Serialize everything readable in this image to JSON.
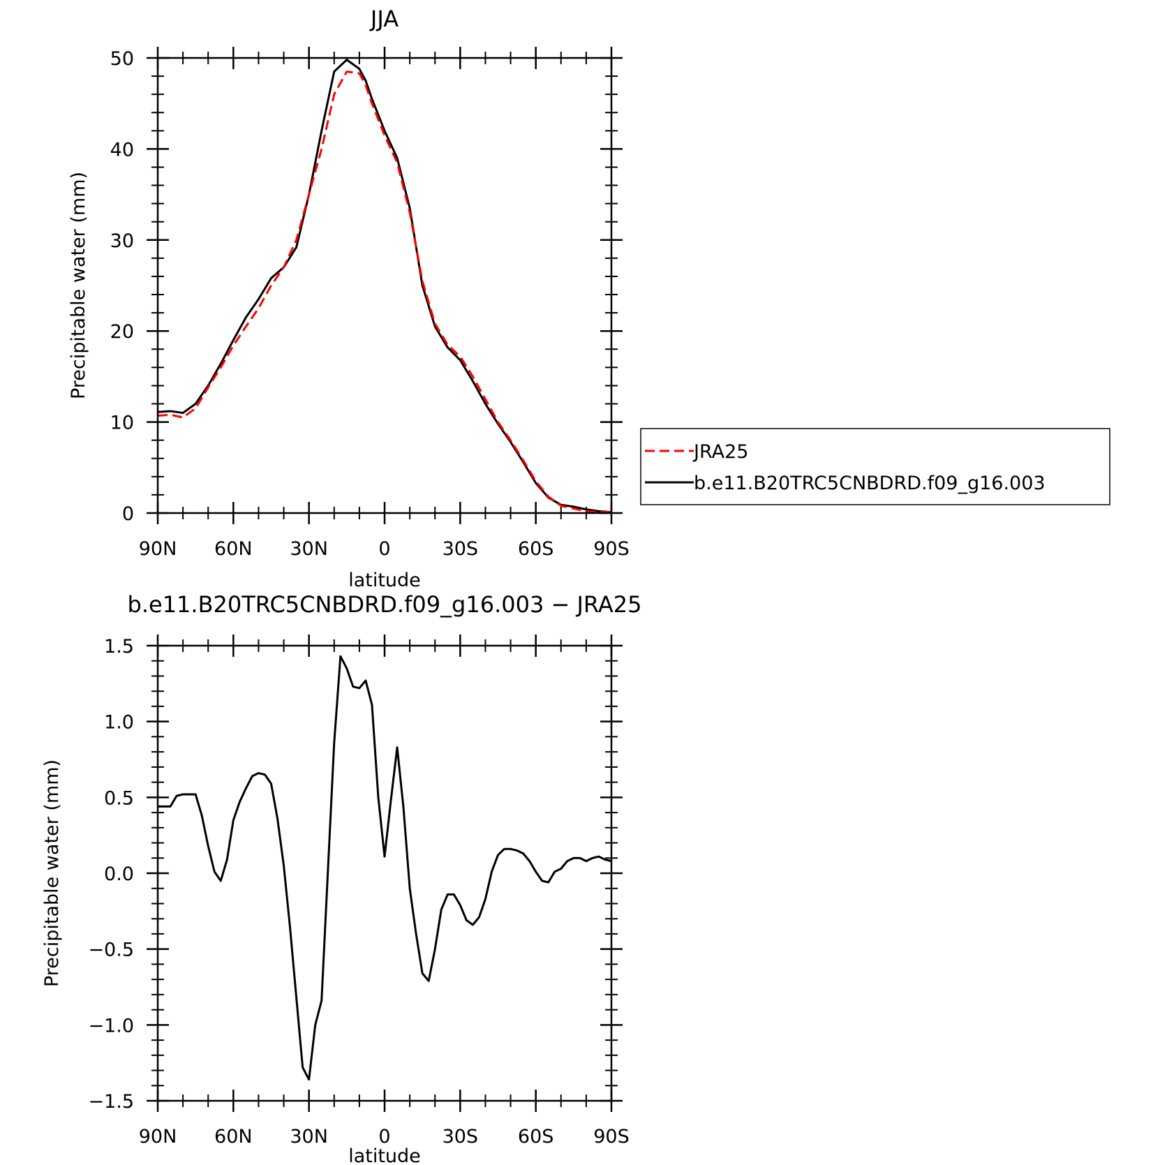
{
  "chart_data": [
    {
      "type": "line",
      "title": "JJA",
      "xlabel": "latitude",
      "ylabel": "Precipitable water (mm)",
      "xlim": [
        90,
        -90
      ],
      "ylim": [
        0,
        50
      ],
      "xticks": [
        90,
        60,
        30,
        0,
        -30,
        -60,
        -90
      ],
      "xtick_labels": [
        "90N",
        "60N",
        "30N",
        "0",
        "30S",
        "60S",
        "90S"
      ],
      "yticks": [
        0,
        10,
        20,
        30,
        40,
        50
      ],
      "ytick_labels": [
        "0",
        "10",
        "20",
        "30",
        "40",
        "50"
      ],
      "legend_position": "right",
      "series": [
        {
          "name": "JRA25",
          "color": "#ff0000",
          "dash": "dashed",
          "x": [
            90,
            85,
            80,
            75,
            70,
            65,
            60,
            55,
            50,
            45,
            40,
            35,
            30,
            25,
            20,
            15,
            10,
            7.5,
            5,
            0,
            -5,
            -10,
            -15,
            -20,
            -25,
            -30,
            -35,
            -40,
            -45,
            -50,
            -55,
            -60,
            -65,
            -70,
            -75,
            -80,
            -85,
            -90
          ],
          "y": [
            10.7,
            10.8,
            10.5,
            11.5,
            13.8,
            16.0,
            18.4,
            20.5,
            22.5,
            25.0,
            27.0,
            30.0,
            35.0,
            40.0,
            46.0,
            48.5,
            48.3,
            47.0,
            45.0,
            41.5,
            38.5,
            33.0,
            25.5,
            20.8,
            18.5,
            17.2,
            15.0,
            12.5,
            10.0,
            8.0,
            5.8,
            3.5,
            1.8,
            0.8,
            0.5,
            0.2,
            0.1,
            0.1
          ]
        },
        {
          "name": "b.e11.B20TRC5CNBDRD.f09_g16.003",
          "color": "#000000",
          "dash": "solid",
          "x": [
            90,
            85,
            80,
            75,
            70,
            65,
            60,
            55,
            50,
            45,
            40,
            35,
            30,
            25,
            20,
            15,
            10,
            7.5,
            5,
            0,
            -5,
            -10,
            -15,
            -20,
            -25,
            -30,
            -35,
            -40,
            -45,
            -50,
            -55,
            -60,
            -65,
            -70,
            -75,
            -80,
            -85,
            -90
          ],
          "y": [
            11.1,
            11.2,
            11.0,
            12.0,
            14.0,
            16.4,
            19.0,
            21.5,
            23.5,
            25.8,
            27.0,
            29.2,
            35.0,
            42.0,
            48.5,
            49.8,
            48.8,
            47.5,
            45.5,
            42.0,
            39.0,
            33.5,
            25.0,
            20.5,
            18.2,
            16.8,
            14.5,
            12.0,
            9.8,
            7.8,
            5.6,
            3.3,
            1.7,
            0.9,
            0.7,
            0.4,
            0.2,
            0.1
          ]
        }
      ]
    },
    {
      "type": "line",
      "title": "b.e11.B20TRC5CNBDRD.f09_g16.003 − JRA25",
      "xlabel": "latitude",
      "ylabel": "Precipitable water (mm)",
      "xlim": [
        90,
        -90
      ],
      "ylim": [
        -1.5,
        1.5
      ],
      "xticks": [
        90,
        60,
        30,
        0,
        -30,
        -60,
        -90
      ],
      "xtick_labels": [
        "90N",
        "60N",
        "30N",
        "0",
        "30S",
        "60S",
        "90S"
      ],
      "yticks": [
        -1.5,
        -1.0,
        -0.5,
        0.0,
        0.5,
        1.0,
        1.5
      ],
      "ytick_labels": [
        "−1.5",
        "−1.0",
        "−0.5",
        "0.0",
        "0.5",
        "1.0",
        "1.5"
      ],
      "series": [
        {
          "color": "#000000",
          "dash": "solid",
          "x": [
            90,
            87.5,
            85,
            82.5,
            80,
            77.5,
            75,
            72.5,
            70,
            67.5,
            65,
            62.5,
            60,
            57.5,
            55,
            52.5,
            50,
            47.5,
            45,
            42.5,
            40,
            37.5,
            35,
            32.5,
            30,
            27.5,
            25,
            22.5,
            20,
            17.5,
            15,
            12.5,
            10,
            7.5,
            5,
            2.5,
            0,
            -2.5,
            -5,
            -7.5,
            -10,
            -12.5,
            -15,
            -17.5,
            -20,
            -22.5,
            -25,
            -27.5,
            -30,
            -32.5,
            -35,
            -37.5,
            -40,
            -42.5,
            -45,
            -47.5,
            -50,
            -52.5,
            -55,
            -57.5,
            -60,
            -62.5,
            -65,
            -67.5,
            -70,
            -72.5,
            -75,
            -77.5,
            -80,
            -82.5,
            -85,
            -87.5,
            -90
          ],
          "y": [
            0.44,
            0.44,
            0.44,
            0.51,
            0.52,
            0.52,
            0.52,
            0.38,
            0.18,
            0.01,
            -0.05,
            0.09,
            0.35,
            0.47,
            0.56,
            0.64,
            0.66,
            0.65,
            0.59,
            0.36,
            0.05,
            -0.36,
            -0.82,
            -1.28,
            -1.36,
            -1.0,
            -0.84,
            0.01,
            0.86,
            1.43,
            1.35,
            1.23,
            1.22,
            1.27,
            1.11,
            0.5,
            0.11,
            0.48,
            0.83,
            0.43,
            -0.1,
            -0.4,
            -0.66,
            -0.71,
            -0.5,
            -0.24,
            -0.14,
            -0.14,
            -0.21,
            -0.31,
            -0.34,
            -0.29,
            -0.17,
            0.01,
            0.12,
            0.16,
            0.16,
            0.15,
            0.13,
            0.08,
            0.01,
            -0.05,
            -0.06,
            0.01,
            0.03,
            0.08,
            0.1,
            0.1,
            0.08,
            0.1,
            0.11,
            0.09,
            0.08
          ]
        }
      ]
    }
  ]
}
